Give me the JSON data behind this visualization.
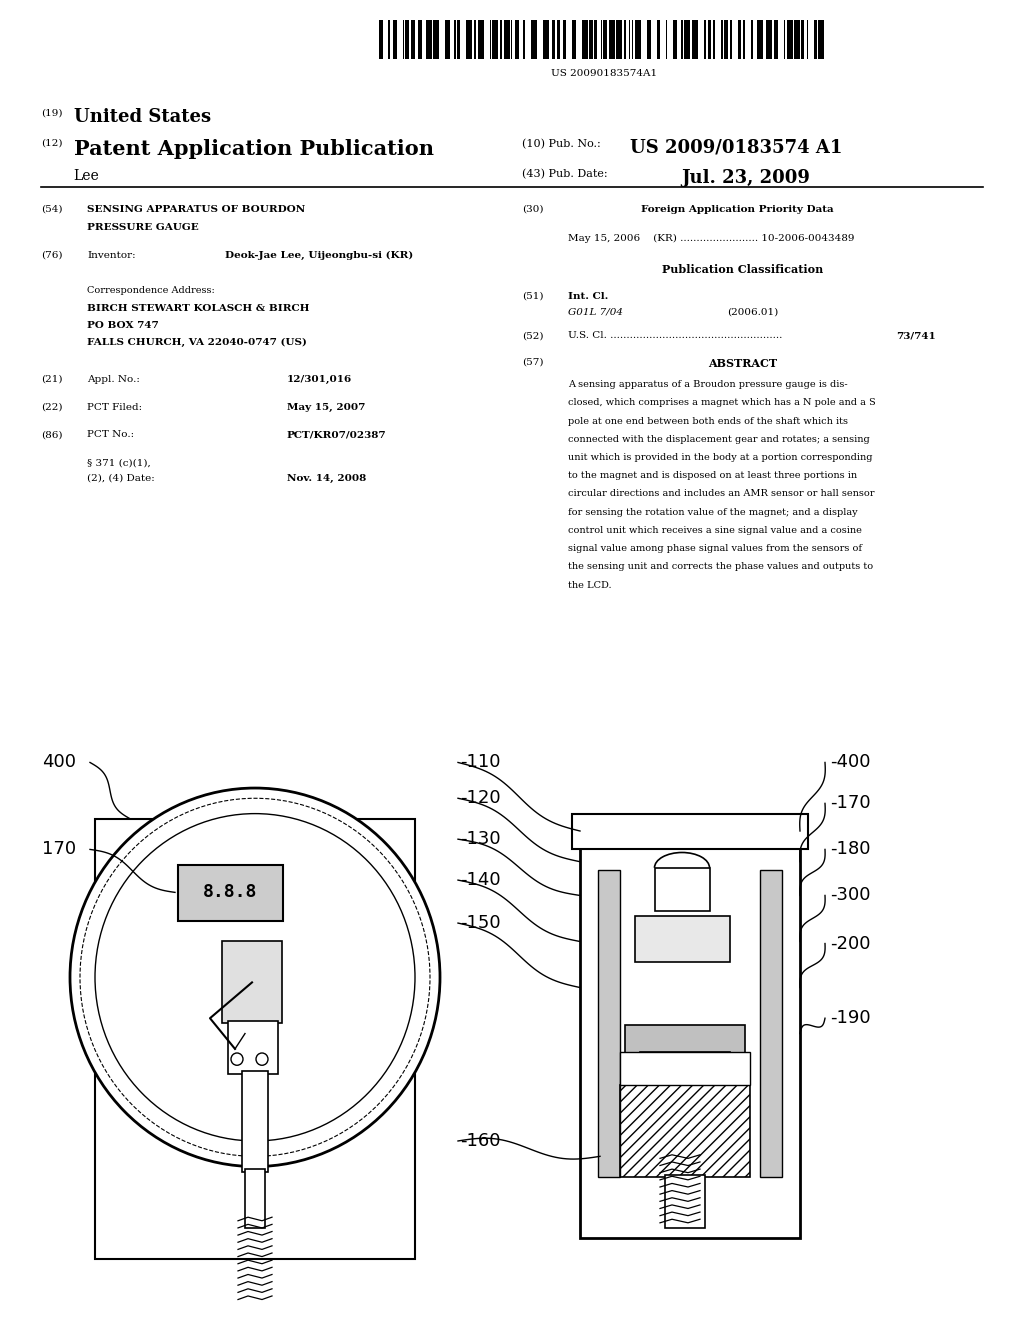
{
  "background_color": "#ffffff",
  "barcode_text": "US 20090183574A1",
  "header_19": "(19)",
  "header_19_text": "United States",
  "header_12": "(12)",
  "header_12_text": "Patent Application Publication",
  "header_10_label": "(10) Pub. No.:",
  "header_10_value": "US 2009/0183574 A1",
  "header_43_label": "(43) Pub. Date:",
  "header_43_value": "Jul. 23, 2009",
  "inventor_name": "Lee",
  "field54_label": "(54)",
  "field54_line1": "SENSING APPARATUS OF BOURDON",
  "field54_line2": "PRESSURE GAUGE",
  "field76_label": "(76)",
  "field76_key": "Inventor:",
  "field76_value": "Deok-Jae Lee, Uijeongbu-si (KR)",
  "corr_label": "Correspondence Address:",
  "corr_line1": "BIRCH STEWART KOLASCH & BIRCH",
  "corr_line2": "PO BOX 747",
  "corr_line3": "FALLS CHURCH, VA 22040-0747 (US)",
  "field21_label": "(21)",
  "field21_key": "Appl. No.:",
  "field21_value": "12/301,016",
  "field22_label": "(22)",
  "field22_key": "PCT Filed:",
  "field22_value": "May 15, 2007",
  "field86_label": "(86)",
  "field86_key": "PCT No.:",
  "field86_value": "PCT/KR07/02387",
  "field86b_key1": "§ 371 (c)(1),",
  "field86b_key2": "(2), (4) Date:",
  "field86b_value": "Nov. 14, 2008",
  "field30_label": "(30)",
  "field30_header": "Foreign Application Priority Data",
  "field30_line": "May 15, 2006    (KR) ........................ 10-2006-0043489",
  "pub_class_header": "Publication Classification",
  "field51_label": "(51)",
  "field51_key": "Int. Cl.",
  "field51_value1": "G01L 7/04",
  "field51_value2": "(2006.01)",
  "field52_label": "(52)",
  "field52_key": "U.S. Cl. .....................................................",
  "field52_value": "73/741",
  "field57_label": "(57)",
  "field57_header": "ABSTRACT",
  "abstract_lines": [
    "A sensing apparatus of a Broudon pressure gauge is dis-",
    "closed, which comprises a magnet which has a N pole and a S",
    "pole at one end between both ends of the shaft which its",
    "connected with the displacement gear and rotates; a sensing",
    "unit which is provided in the body at a portion corresponding",
    "to the magnet and is disposed on at least three portions in",
    "circular directions and includes an AMR sensor or hall sensor",
    "for sensing the rotation value of the magnet; and a display",
    "control unit which receives a sine signal value and a cosine",
    "signal value among phase signal values from the sensors of",
    "the sensing unit and corrects the phase values and outputs to",
    "the LCD."
  ]
}
